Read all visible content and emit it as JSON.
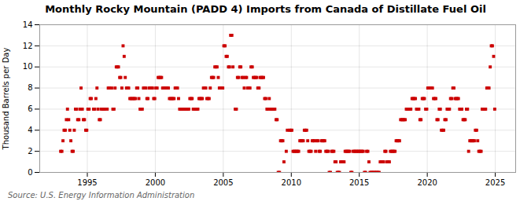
{
  "chart_data": {
    "type": "scatter",
    "title": "Monthly Rocky Mountain (PADD 4) Imports from Canada of Distillate Fuel Oil",
    "ylabel": "Thousand Barrels per Day",
    "source": "Source: U.S. Energy Information Administration",
    "color": "#cc0000",
    "marker": "square",
    "grid": true,
    "xlim": [
      1991.5,
      2026.5
    ],
    "xticks": [
      1995,
      2000,
      2005,
      2010,
      2015,
      2020,
      2025
    ],
    "ylim": [
      0,
      14
    ],
    "yticks": [
      0,
      2,
      4,
      6,
      8,
      10,
      12,
      14
    ],
    "x": [
      1993.04,
      1993.13,
      1993.21,
      1993.29,
      1993.38,
      1993.46,
      1993.54,
      1993.63,
      1993.71,
      1993.79,
      1993.88,
      1993.96,
      1994.04,
      1994.13,
      1994.21,
      1994.29,
      1994.38,
      1994.46,
      1994.54,
      1994.63,
      1994.71,
      1994.79,
      1994.88,
      1994.96,
      1995.04,
      1995.13,
      1995.21,
      1995.29,
      1995.46,
      1995.54,
      1995.63,
      1995.71,
      1995.79,
      1995.88,
      1995.96,
      1996.04,
      1996.13,
      1996.21,
      1996.29,
      1996.46,
      1996.54,
      1996.63,
      1996.79,
      1996.88,
      1996.96,
      1997.04,
      1997.13,
      1997.21,
      1997.29,
      1997.38,
      1997.46,
      1997.54,
      1997.63,
      1997.71,
      1997.79,
      1997.88,
      1997.96,
      1998.04,
      1998.13,
      1998.21,
      1998.29,
      1998.38,
      1998.46,
      1998.54,
      1998.63,
      1998.71,
      1998.79,
      1998.88,
      1998.96,
      1999.04,
      1999.13,
      1999.21,
      1999.29,
      1999.38,
      1999.46,
      1999.54,
      1999.63,
      1999.71,
      1999.79,
      1999.88,
      1999.96,
      2000.04,
      2000.13,
      2000.21,
      2000.29,
      2000.38,
      2000.46,
      2000.54,
      2000.63,
      2000.71,
      2000.79,
      2000.88,
      2000.96,
      2001.04,
      2001.13,
      2001.21,
      2001.29,
      2001.38,
      2001.46,
      2001.54,
      2001.63,
      2001.71,
      2001.79,
      2001.88,
      2001.96,
      2002.04,
      2002.13,
      2002.21,
      2002.29,
      2002.38,
      2002.46,
      2002.54,
      2002.63,
      2002.71,
      2002.79,
      2002.88,
      2002.96,
      2003.04,
      2003.13,
      2003.21,
      2003.29,
      2003.38,
      2003.46,
      2003.54,
      2003.63,
      2003.71,
      2003.79,
      2003.88,
      2003.96,
      2004.04,
      2004.13,
      2004.21,
      2004.29,
      2004.38,
      2004.46,
      2004.54,
      2004.63,
      2004.71,
      2004.79,
      2004.88,
      2004.96,
      2005.04,
      2005.13,
      2005.21,
      2005.29,
      2005.38,
      2005.46,
      2005.54,
      2005.63,
      2005.71,
      2005.88,
      2005.96,
      2006.04,
      2006.13,
      2006.21,
      2006.29,
      2006.38,
      2006.46,
      2006.54,
      2006.63,
      2006.71,
      2006.79,
      2006.88,
      2006.96,
      2007.04,
      2007.13,
      2007.21,
      2007.29,
      2007.38,
      2007.46,
      2007.54,
      2007.63,
      2007.71,
      2007.79,
      2007.88,
      2007.96,
      2008.04,
      2008.13,
      2008.21,
      2008.29,
      2008.38,
      2008.46,
      2008.54,
      2008.63,
      2008.71,
      2008.79,
      2008.88,
      2008.96,
      2009.04,
      2009.13,
      2009.21,
      2009.29,
      2009.38,
      2009.46,
      2009.63,
      2009.71,
      2009.88,
      2009.96,
      2010.04,
      2010.13,
      2010.21,
      2010.29,
      2010.38,
      2010.46,
      2010.54,
      2010.63,
      2010.71,
      2010.79,
      2010.88,
      2010.96,
      2011.04,
      2011.13,
      2011.21,
      2011.29,
      2011.38,
      2011.46,
      2011.54,
      2011.63,
      2011.71,
      2011.79,
      2011.88,
      2011.96,
      2012.04,
      2012.13,
      2012.21,
      2012.29,
      2012.38,
      2012.46,
      2012.54,
      2012.63,
      2012.71,
      2012.79,
      2012.88,
      2012.96,
      2013.04,
      2013.13,
      2013.21,
      2013.29,
      2013.38,
      2013.46,
      2013.54,
      2013.63,
      2013.71,
      2013.79,
      2013.88,
      2013.96,
      2014.04,
      2014.13,
      2014.21,
      2014.29,
      2014.38,
      2014.46,
      2014.54,
      2014.63,
      2014.71,
      2014.79,
      2014.88,
      2014.96,
      2015.04,
      2015.13,
      2015.21,
      2015.29,
      2015.38,
      2015.46,
      2015.54,
      2015.63,
      2015.71,
      2015.79,
      2015.88,
      2015.96,
      2016.04,
      2016.13,
      2016.21,
      2016.29,
      2016.38,
      2016.46,
      2016.54,
      2016.63,
      2016.71,
      2016.79,
      2016.88,
      2016.96,
      2017.04,
      2017.13,
      2017.21,
      2017.29,
      2017.38,
      2017.46,
      2017.54,
      2017.63,
      2017.71,
      2017.79,
      2017.88,
      2017.96,
      2018.04,
      2018.13,
      2018.21,
      2018.29,
      2018.38,
      2018.46,
      2018.54,
      2018.63,
      2018.71,
      2018.79,
      2018.88,
      2018.96,
      2019.04,
      2019.13,
      2019.21,
      2019.29,
      2019.38,
      2019.46,
      2019.54,
      2019.63,
      2019.71,
      2019.79,
      2019.88,
      2019.96,
      2020.04,
      2020.13,
      2020.21,
      2020.29,
      2020.38,
      2020.46,
      2020.54,
      2020.63,
      2020.71,
      2020.79,
      2020.88,
      2020.96,
      2021.04,
      2021.13,
      2021.21,
      2021.29,
      2021.38,
      2021.46,
      2021.54,
      2021.63,
      2021.71,
      2021.79,
      2021.88,
      2021.96,
      2022.04,
      2022.13,
      2022.21,
      2022.29,
      2022.38,
      2022.46,
      2022.54,
      2022.63,
      2022.71,
      2022.79,
      2022.88,
      2022.96,
      2023.04,
      2023.13,
      2023.21,
      2023.29,
      2023.38,
      2023.46,
      2023.54,
      2023.63,
      2023.71,
      2023.79,
      2023.88,
      2023.96,
      2024.04,
      2024.13,
      2024.21,
      2024.29,
      2024.38,
      2024.46,
      2024.54,
      2024.63,
      2024.71,
      2024.79,
      2024.88,
      2024.96
    ],
    "values": [
      2,
      2,
      3,
      4,
      4,
      5,
      6,
      5,
      4,
      3,
      2,
      2,
      4,
      6,
      6,
      5,
      5,
      6,
      8,
      6,
      5,
      5,
      4,
      4,
      6,
      6,
      7,
      7,
      6,
      6,
      7,
      8,
      6,
      5,
      5,
      6,
      6,
      6,
      6,
      6,
      8,
      8,
      8,
      6,
      6,
      8,
      10,
      10,
      10,
      9,
      9,
      8,
      12,
      11,
      9,
      8,
      8,
      8,
      7,
      7,
      7,
      7,
      7,
      7,
      8,
      8,
      7,
      6,
      6,
      6,
      8,
      8,
      8,
      7,
      7,
      8,
      8,
      8,
      8,
      7,
      7,
      8,
      8,
      9,
      9,
      9,
      9,
      8,
      8,
      8,
      8,
      8,
      8,
      7,
      7,
      7,
      7,
      7,
      8,
      8,
      8,
      7,
      6,
      6,
      6,
      6,
      6,
      6,
      6,
      6,
      6,
      7,
      7,
      7,
      6,
      6,
      6,
      6,
      6,
      7,
      7,
      7,
      7,
      8,
      8,
      8,
      7,
      7,
      7,
      8,
      9,
      9,
      9,
      10,
      10,
      10,
      9,
      8,
      8,
      8,
      8,
      12,
      12,
      11,
      11,
      10,
      10,
      13,
      13,
      10,
      6,
      6,
      9,
      9,
      10,
      10,
      9,
      9,
      8,
      9,
      9,
      8,
      8,
      8,
      10,
      10,
      9,
      9,
      9,
      9,
      8,
      8,
      9,
      9,
      9,
      9,
      7,
      7,
      6,
      6,
      7,
      6,
      6,
      6,
      6,
      6,
      5,
      5,
      0,
      0,
      3,
      3,
      3,
      1,
      2,
      4,
      4,
      4,
      4,
      2,
      2,
      2,
      2,
      2,
      2,
      3,
      3,
      3,
      3,
      4,
      4,
      4,
      3,
      2,
      2,
      2,
      3,
      3,
      3,
      2,
      3,
      3,
      2,
      2,
      3,
      3,
      3,
      3,
      2,
      2,
      2,
      0,
      0,
      2,
      2,
      2,
      1,
      1,
      0,
      0,
      0,
      1,
      1,
      1,
      1,
      2,
      2,
      2,
      2,
      2,
      0,
      0,
      2,
      2,
      2,
      2,
      2,
      2,
      2,
      2,
      2,
      2,
      0,
      0,
      2,
      2,
      1,
      0,
      0,
      0,
      0,
      0,
      0,
      0,
      0,
      0,
      1,
      1,
      1,
      1,
      2,
      2,
      1,
      1,
      1,
      2,
      2,
      2,
      2,
      2,
      3,
      3,
      3,
      3,
      5,
      5,
      5,
      5,
      5,
      6,
      6,
      6,
      6,
      6,
      7,
      7,
      7,
      7,
      6,
      6,
      6,
      5,
      5,
      7,
      7,
      7,
      6,
      6,
      8,
      8,
      8,
      8,
      8,
      7,
      7,
      7,
      5,
      5,
      6,
      6,
      4,
      4,
      4,
      5,
      5,
      6,
      6,
      6,
      7,
      7,
      8,
      8,
      7,
      7,
      7,
      7,
      6,
      6,
      6,
      5,
      5,
      5,
      6,
      6,
      2,
      3,
      3,
      3,
      3,
      3,
      4,
      4,
      3,
      2,
      2,
      2,
      6,
      6,
      6,
      6,
      8,
      8,
      8,
      10,
      12,
      12,
      11,
      6
    ]
  }
}
